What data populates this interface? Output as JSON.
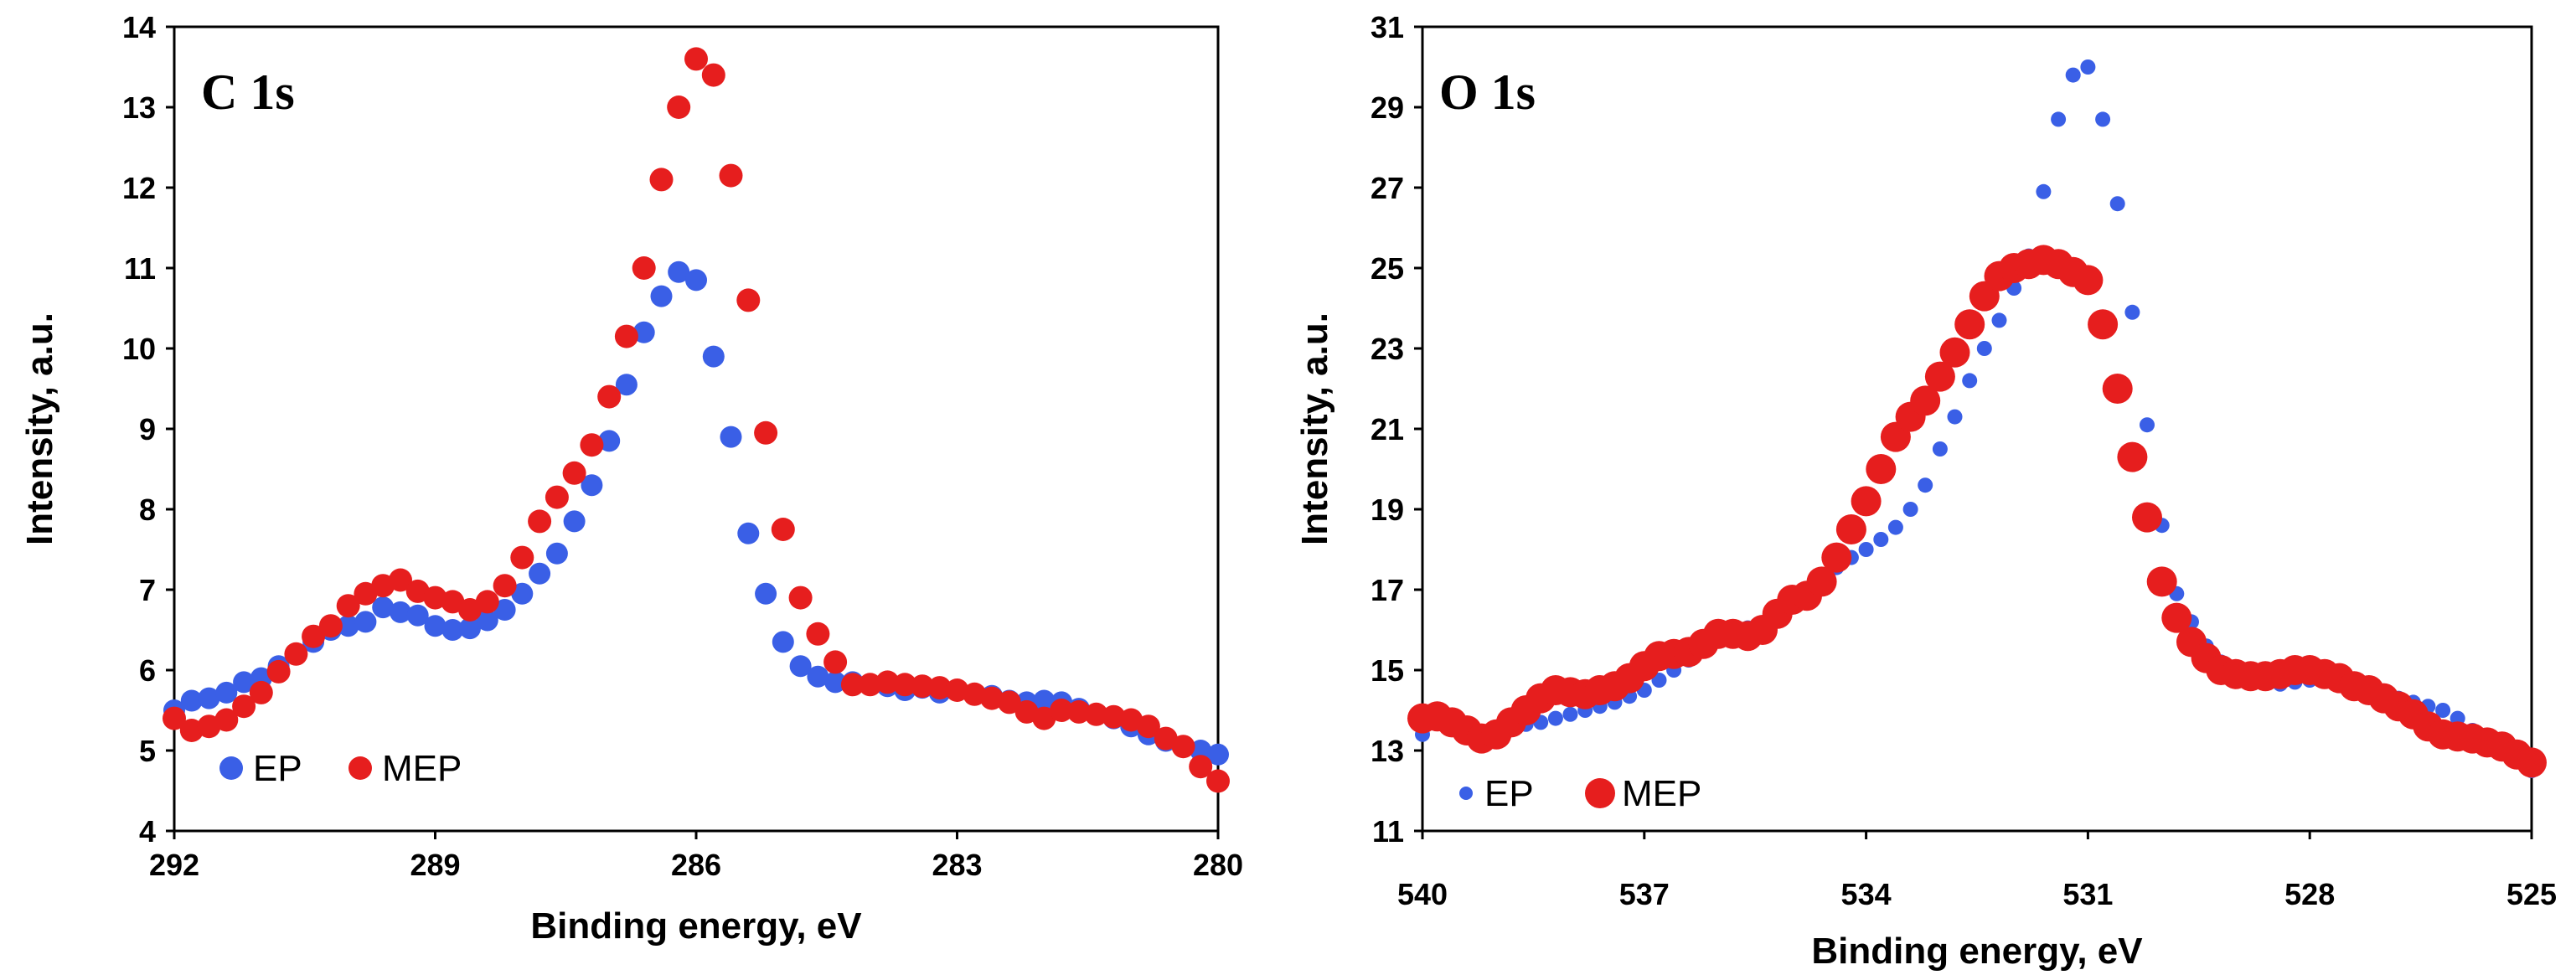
{
  "chart_data": [
    {
      "type": "scatter",
      "panel_label": "C 1s",
      "xlabel": "Binding energy,  eV",
      "ylabel": "Intensity, a.u.",
      "xlim": [
        292,
        280
      ],
      "ylim": [
        4,
        14
      ],
      "x_ticks": [
        292,
        289,
        286,
        283,
        280
      ],
      "y_ticks": [
        4,
        5,
        6,
        7,
        8,
        9,
        10,
        11,
        12,
        13,
        14
      ],
      "legend_position": "bottom-left",
      "series": [
        {
          "name": "EP",
          "color": "#3a5fe6",
          "x": [
            292.0,
            291.8,
            291.6,
            291.4,
            291.2,
            291.0,
            290.8,
            290.6,
            290.4,
            290.2,
            290.0,
            289.8,
            289.6,
            289.4,
            289.2,
            289.0,
            288.8,
            288.6,
            288.4,
            288.2,
            288.0,
            287.8,
            287.6,
            287.4,
            287.2,
            287.0,
            286.8,
            286.6,
            286.4,
            286.2,
            286.0,
            285.8,
            285.6,
            285.4,
            285.2,
            285.0,
            284.8,
            284.6,
            284.4,
            284.2,
            284.0,
            283.8,
            283.6,
            283.4,
            283.2,
            283.0,
            282.8,
            282.6,
            282.4,
            282.2,
            282.0,
            281.8,
            281.6,
            281.4,
            281.2,
            281.0,
            280.8,
            280.6,
            280.4,
            280.2,
            280.0
          ],
          "y": [
            5.5,
            5.62,
            5.65,
            5.72,
            5.85,
            5.9,
            6.05,
            6.2,
            6.35,
            6.5,
            6.55,
            6.6,
            6.78,
            6.72,
            6.68,
            6.55,
            6.5,
            6.52,
            6.62,
            6.75,
            6.95,
            7.2,
            7.45,
            7.85,
            8.3,
            8.85,
            9.55,
            10.2,
            10.65,
            10.95,
            10.85,
            9.9,
            8.9,
            7.7,
            6.95,
            6.35,
            6.05,
            5.92,
            5.85,
            5.85,
            5.82,
            5.8,
            5.75,
            5.78,
            5.72,
            5.75,
            5.7,
            5.68,
            5.62,
            5.6,
            5.62,
            5.6,
            5.52,
            5.45,
            5.4,
            5.3,
            5.2,
            5.12,
            5.05,
            5.0,
            4.95
          ]
        },
        {
          "name": "MEP",
          "color": "#e61e1e",
          "x": [
            292.0,
            291.8,
            291.6,
            291.4,
            291.2,
            291.0,
            290.8,
            290.6,
            290.4,
            290.2,
            290.0,
            289.8,
            289.6,
            289.4,
            289.2,
            289.0,
            288.8,
            288.6,
            288.4,
            288.2,
            288.0,
            287.8,
            287.6,
            287.4,
            287.2,
            287.0,
            286.8,
            286.6,
            286.4,
            286.2,
            286.0,
            285.8,
            285.6,
            285.4,
            285.2,
            285.0,
            284.8,
            284.6,
            284.4,
            284.2,
            284.0,
            283.8,
            283.6,
            283.4,
            283.2,
            283.0,
            282.8,
            282.6,
            282.4,
            282.2,
            282.0,
            281.8,
            281.6,
            281.4,
            281.2,
            281.0,
            280.8,
            280.6,
            280.4,
            280.2,
            280.0
          ],
          "y": [
            5.4,
            5.25,
            5.3,
            5.38,
            5.55,
            5.72,
            5.98,
            6.2,
            6.42,
            6.55,
            6.8,
            6.95,
            7.05,
            7.12,
            6.98,
            6.9,
            6.85,
            6.75,
            6.85,
            7.05,
            7.4,
            7.85,
            8.15,
            8.45,
            8.8,
            9.4,
            10.15,
            11.0,
            12.1,
            13.0,
            13.6,
            13.4,
            12.15,
            10.6,
            8.95,
            7.75,
            6.9,
            6.45,
            6.1,
            5.82,
            5.82,
            5.85,
            5.82,
            5.8,
            5.78,
            5.75,
            5.7,
            5.65,
            5.6,
            5.48,
            5.4,
            5.5,
            5.48,
            5.45,
            5.42,
            5.38,
            5.3,
            5.15,
            5.05,
            4.8,
            4.62
          ]
        }
      ]
    },
    {
      "type": "scatter",
      "panel_label": "O 1s",
      "xlabel": "Binding energy,  eV",
      "ylabel": "Intensity, a.u.",
      "xlim": [
        540,
        525
      ],
      "ylim": [
        11,
        31
      ],
      "x_ticks": [
        540,
        537,
        534,
        531,
        528,
        525
      ],
      "y_ticks": [
        11,
        13,
        15,
        17,
        19,
        21,
        23,
        25,
        27,
        29,
        31
      ],
      "legend_position": "bottom-left",
      "series": [
        {
          "name": "EP",
          "color": "#3a5fe6",
          "x": [
            540.0,
            539.8,
            539.6,
            539.4,
            539.2,
            539.0,
            538.8,
            538.6,
            538.4,
            538.2,
            538.0,
            537.8,
            537.6,
            537.4,
            537.2,
            537.0,
            536.8,
            536.6,
            536.4,
            536.2,
            536.0,
            535.8,
            535.6,
            535.4,
            535.2,
            535.0,
            534.8,
            534.6,
            534.4,
            534.2,
            534.0,
            533.8,
            533.6,
            533.4,
            533.2,
            533.0,
            532.8,
            532.6,
            532.4,
            532.2,
            532.0,
            531.8,
            531.6,
            531.4,
            531.2,
            531.0,
            530.8,
            530.6,
            530.4,
            530.2,
            530.0,
            529.8,
            529.6,
            529.4,
            529.2,
            529.0,
            528.8,
            528.6,
            528.4,
            528.2,
            528.0,
            527.8,
            527.6,
            527.4,
            527.2,
            527.0,
            526.8,
            526.6,
            526.4,
            526.2,
            526.0,
            525.8,
            525.6,
            525.4,
            525.2,
            525.0
          ],
          "y": [
            13.4,
            13.7,
            13.6,
            13.5,
            13.4,
            13.5,
            13.6,
            13.65,
            13.7,
            13.8,
            13.9,
            14.0,
            14.1,
            14.2,
            14.35,
            14.5,
            14.75,
            15.0,
            15.25,
            15.5,
            15.8,
            16.0,
            16.05,
            16.1,
            16.3,
            16.6,
            16.95,
            17.3,
            17.55,
            17.8,
            18.0,
            18.25,
            18.55,
            19.0,
            19.6,
            20.5,
            21.3,
            22.2,
            23.0,
            23.7,
            24.5,
            25.3,
            26.9,
            28.7,
            29.8,
            30.0,
            28.7,
            26.6,
            23.9,
            21.1,
            18.6,
            16.9,
            16.2,
            15.6,
            15.2,
            14.9,
            14.75,
            14.7,
            14.65,
            14.7,
            14.75,
            14.75,
            14.7,
            14.6,
            14.5,
            14.4,
            14.3,
            14.2,
            14.1,
            14.0,
            13.8,
            13.5,
            13.2,
            13.0,
            12.8,
            12.5
          ]
        },
        {
          "name": "MEP",
          "color": "#e61e1e",
          "x": [
            540.0,
            539.8,
            539.6,
            539.4,
            539.2,
            539.0,
            538.8,
            538.6,
            538.4,
            538.2,
            538.0,
            537.8,
            537.6,
            537.4,
            537.2,
            537.0,
            536.8,
            536.6,
            536.4,
            536.2,
            536.0,
            535.8,
            535.6,
            535.4,
            535.2,
            535.0,
            534.8,
            534.6,
            534.4,
            534.2,
            534.0,
            533.8,
            533.6,
            533.4,
            533.2,
            533.0,
            532.8,
            532.6,
            532.4,
            532.2,
            532.0,
            531.8,
            531.6,
            531.4,
            531.2,
            531.0,
            530.8,
            530.6,
            530.4,
            530.2,
            530.0,
            529.8,
            529.6,
            529.4,
            529.2,
            529.0,
            528.8,
            528.6,
            528.4,
            528.2,
            528.0,
            527.8,
            527.6,
            527.4,
            527.2,
            527.0,
            526.8,
            526.6,
            526.4,
            526.2,
            526.0,
            525.8,
            525.6,
            525.4,
            525.2,
            525.0
          ],
          "y": [
            13.8,
            13.85,
            13.7,
            13.5,
            13.3,
            13.4,
            13.7,
            14.0,
            14.3,
            14.5,
            14.45,
            14.4,
            14.5,
            14.6,
            14.8,
            15.1,
            15.35,
            15.4,
            15.45,
            15.65,
            15.9,
            15.9,
            15.85,
            16.0,
            16.4,
            16.75,
            16.85,
            17.2,
            17.8,
            18.5,
            19.2,
            20.0,
            20.8,
            21.3,
            21.7,
            22.3,
            22.9,
            23.6,
            24.3,
            24.8,
            25.0,
            25.1,
            25.2,
            25.1,
            24.9,
            24.7,
            23.6,
            22.0,
            20.3,
            18.8,
            17.2,
            16.3,
            15.7,
            15.3,
            15.0,
            14.9,
            14.85,
            14.85,
            14.9,
            15.0,
            15.0,
            14.9,
            14.8,
            14.6,
            14.5,
            14.3,
            14.1,
            13.9,
            13.6,
            13.4,
            13.35,
            13.3,
            13.2,
            13.1,
            12.9,
            12.7
          ]
        }
      ]
    }
  ]
}
